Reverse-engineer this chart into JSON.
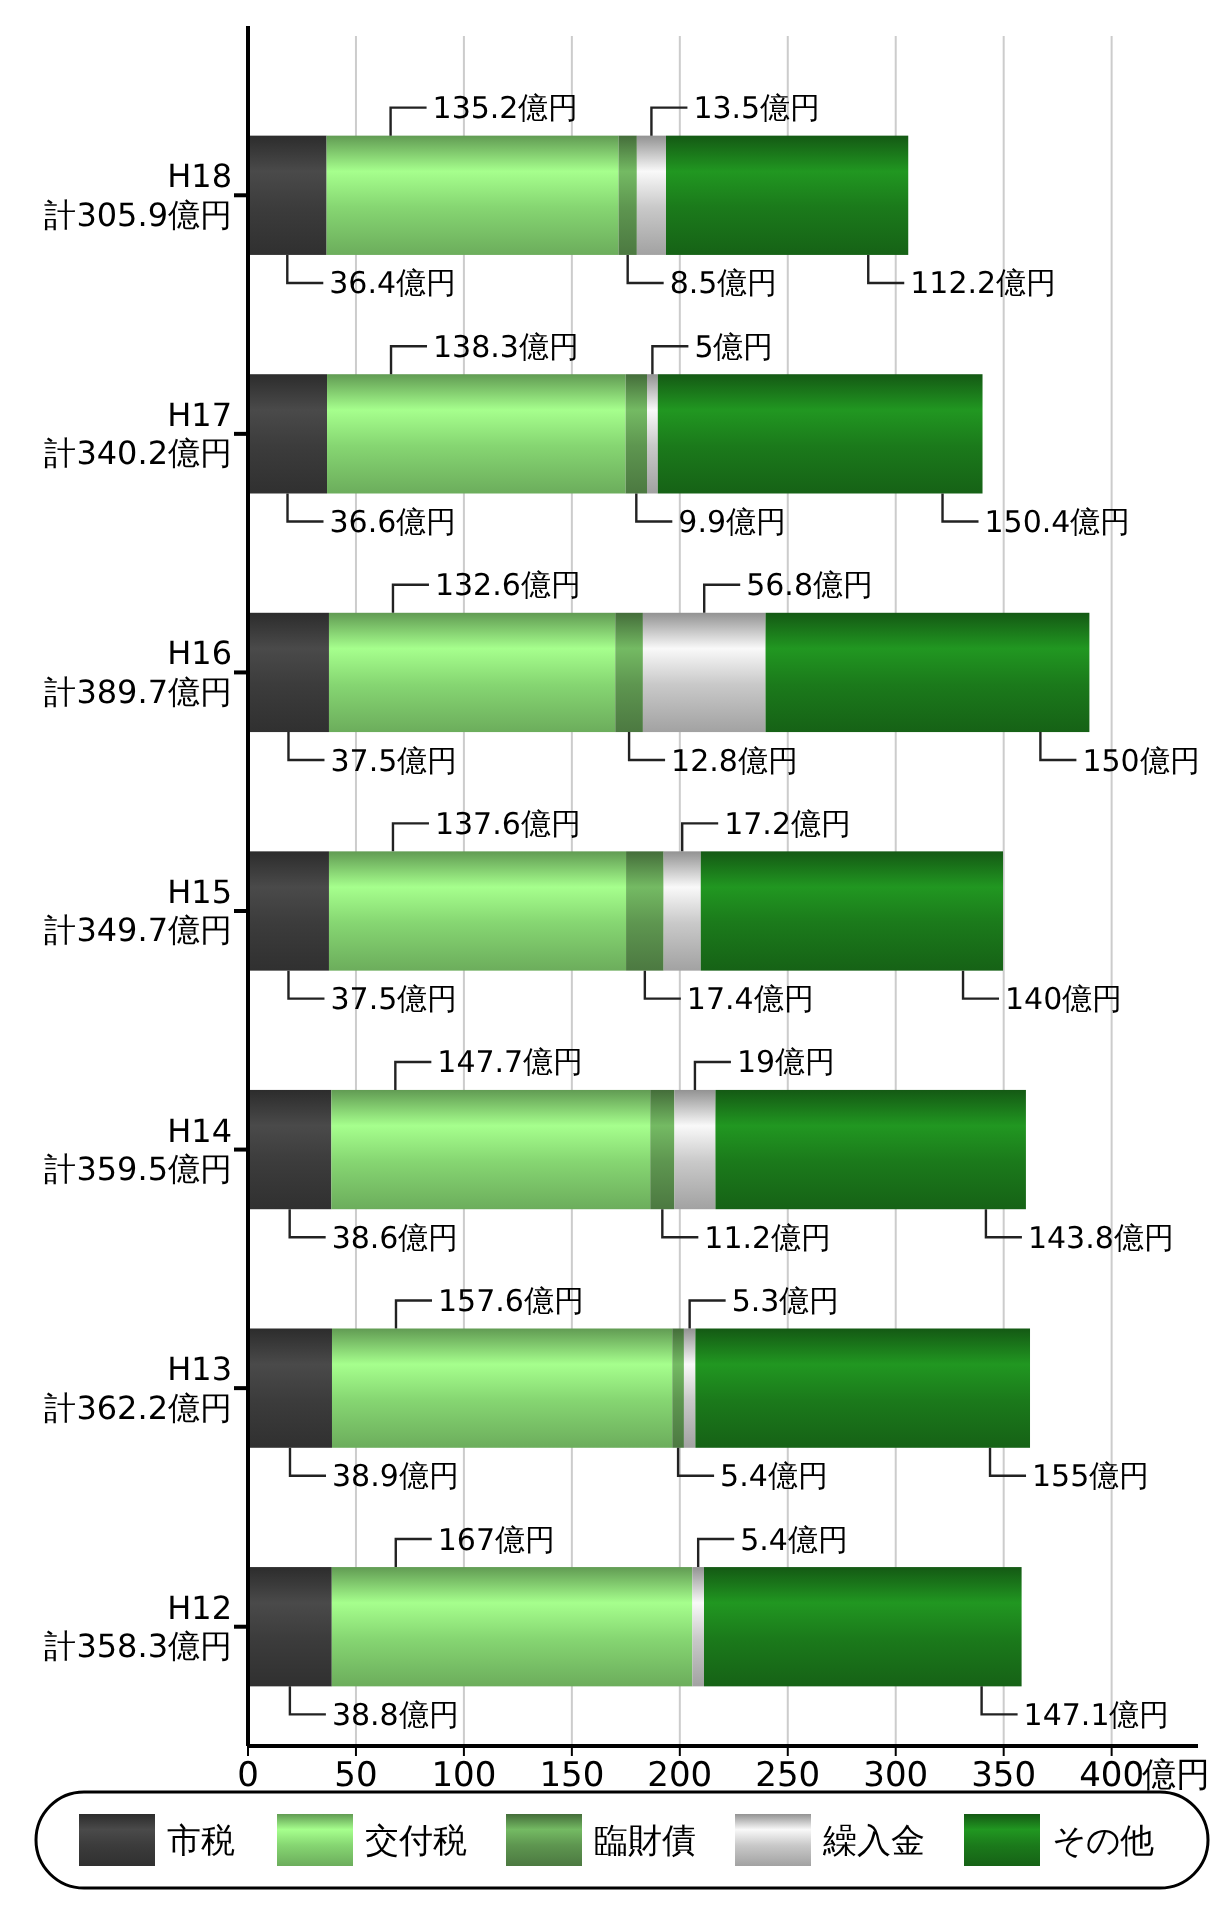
{
  "chart_data": {
    "type": "bar",
    "orientation": "horizontal",
    "stacked": true,
    "categories": [
      "H18\n計305.9億円",
      "H17\n計340.2億円",
      "H16\n計389.7億円",
      "H15\n計349.7億円",
      "H14\n計359.5億円",
      "H13\n計362.2億円",
      "H12\n計358.3億円"
    ],
    "series": [
      {
        "name": "市税",
        "color": "#3c3c3c",
        "values": [
          36.4,
          36.6,
          37.5,
          37.5,
          38.6,
          38.9,
          38.8
        ],
        "value_labels": [
          "36.4億円",
          "36.6億円",
          "37.5億円",
          "37.5億円",
          "38.6億円",
          "38.9億円",
          "38.8億円"
        ]
      },
      {
        "name": "交付税",
        "color": "#86d672",
        "values": [
          135.2,
          138.3,
          132.6,
          137.6,
          147.7,
          157.6,
          167
        ],
        "value_labels": [
          "135.2億円",
          "138.3億円",
          "132.6億円",
          "137.6億円",
          "147.7億円",
          "157.6億円",
          "167億円"
        ]
      },
      {
        "name": "臨財債",
        "color": "#5e9650",
        "values": [
          8.5,
          9.9,
          12.8,
          17.4,
          11.2,
          5.4,
          null
        ],
        "value_labels": [
          "8.5億円",
          "9.9億円",
          "12.8億円",
          "17.4億円",
          "11.2億円",
          "5.4億円",
          null
        ]
      },
      {
        "name": "繰入金",
        "color": "#c9c9c9",
        "values": [
          13.5,
          5,
          56.8,
          17.2,
          19,
          5.3,
          5.4
        ],
        "value_labels": [
          "13.5億円",
          "5億円",
          "56.8億円",
          "17.2億円",
          "19億円",
          "5.3億円",
          "5.4億円"
        ]
      },
      {
        "name": "その他",
        "color": "#1b7a1b",
        "values": [
          112.2,
          150.4,
          150,
          140,
          143.8,
          155,
          147.1
        ],
        "value_labels": [
          "112.2億円",
          "150.4億円",
          "150億円",
          "140億円",
          "143.8億円",
          "155億円",
          "147.1億円"
        ]
      }
    ],
    "xlabel": "億円",
    "xlim": [
      0,
      440
    ],
    "xticks": [
      0,
      50,
      100,
      150,
      200,
      250,
      300,
      350,
      400
    ],
    "grid": "x",
    "legend": "bottom"
  }
}
